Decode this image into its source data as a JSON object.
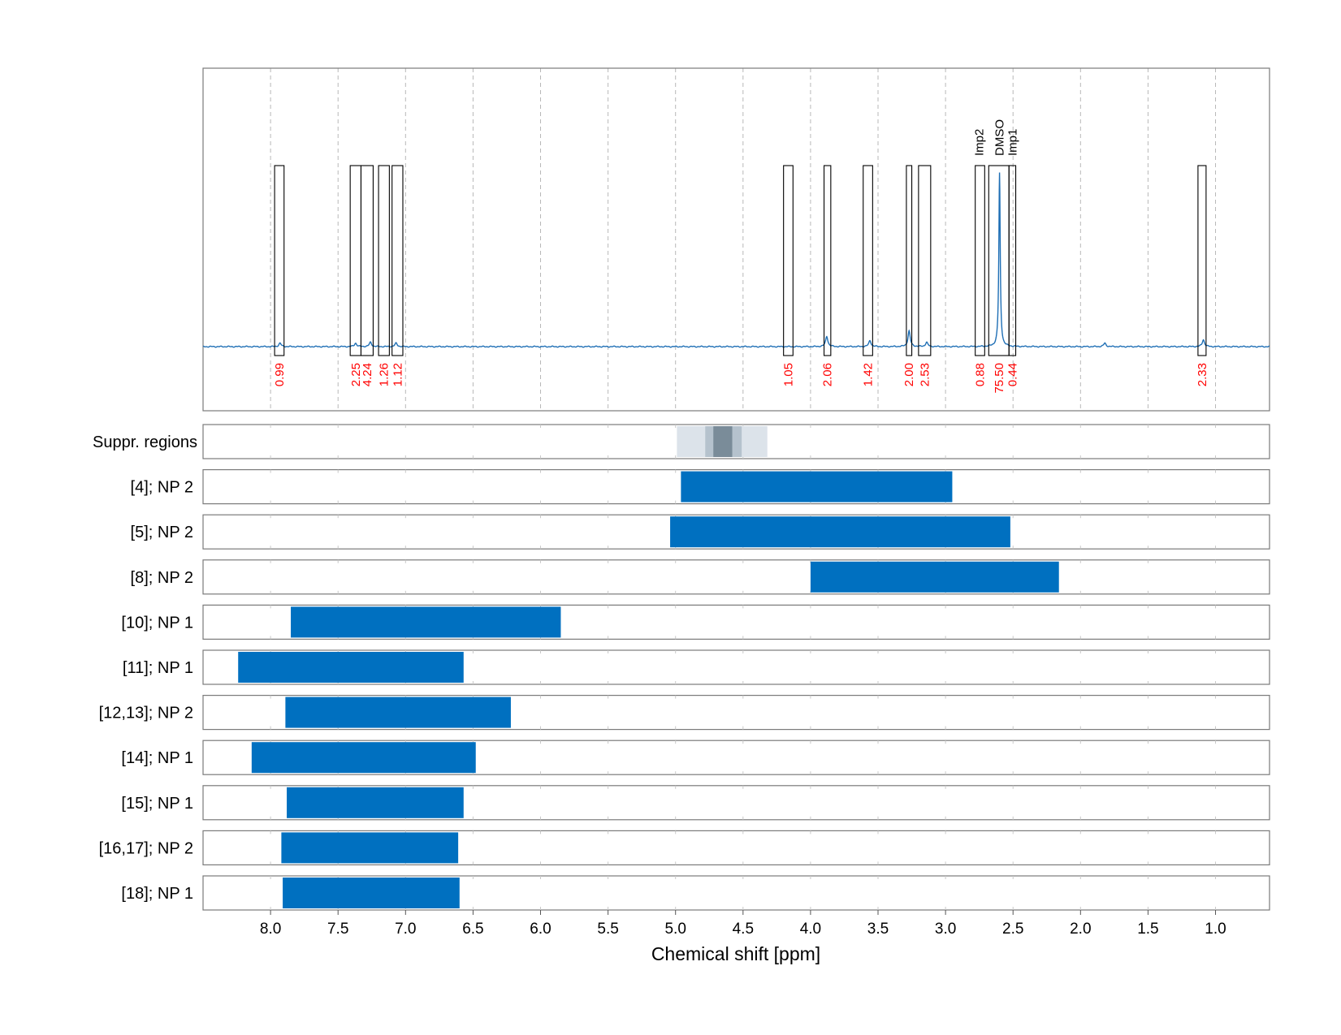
{
  "chart_data": {
    "type": "nmr-spectrum-with-range-bars",
    "x_axis": {
      "label": "Chemical shift [ppm]",
      "range": [
        8.5,
        0.6
      ],
      "ticks": [
        8.0,
        7.5,
        7.0,
        6.5,
        6.0,
        5.5,
        5.0,
        4.5,
        4.0,
        3.5,
        3.0,
        2.5,
        2.0,
        1.5,
        1.0
      ],
      "tick_labels": [
        "8.0",
        "7.5",
        "7.0",
        "6.5",
        "6.0",
        "5.5",
        "5.0",
        "4.5",
        "4.0",
        "3.5",
        "3.0",
        "2.5",
        "2.0",
        "1.5",
        "1.0"
      ],
      "grid": "dashed"
    },
    "spectrum": {
      "color": "#1f6fb5",
      "baseline": 0,
      "peaks": [
        {
          "ppm": 7.93,
          "height": 0.02
        },
        {
          "ppm": 7.37,
          "height": 0.02
        },
        {
          "ppm": 7.26,
          "height": 0.025
        },
        {
          "ppm": 7.07,
          "height": 0.02
        },
        {
          "ppm": 3.88,
          "height": 0.06
        },
        {
          "ppm": 3.56,
          "height": 0.035
        },
        {
          "ppm": 3.27,
          "height": 0.09
        },
        {
          "ppm": 3.14,
          "height": 0.025
        },
        {
          "ppm": 2.6,
          "height": 1.0
        },
        {
          "ppm": 1.82,
          "height": 0.02
        },
        {
          "ppm": 1.09,
          "height": 0.04
        }
      ]
    },
    "integration_regions": [
      {
        "start": 7.97,
        "end": 7.9,
        "value": "0.99"
      },
      {
        "start": 7.41,
        "end": 7.33,
        "value": "2.25"
      },
      {
        "start": 7.33,
        "end": 7.24,
        "value": "4.24"
      },
      {
        "start": 7.2,
        "end": 7.12,
        "value": "1.26"
      },
      {
        "start": 7.1,
        "end": 7.02,
        "value": "1.12"
      },
      {
        "start": 4.2,
        "end": 4.13,
        "value": "1.05"
      },
      {
        "start": 3.9,
        "end": 3.85,
        "value": "2.06"
      },
      {
        "start": 3.61,
        "end": 3.54,
        "value": "1.42"
      },
      {
        "start": 3.29,
        "end": 3.25,
        "value": "2.00"
      },
      {
        "start": 3.2,
        "end": 3.11,
        "value": "2.53"
      },
      {
        "start": 2.78,
        "end": 2.71,
        "value": "0.88"
      },
      {
        "start": 2.68,
        "end": 2.53,
        "value": "75.50",
        "name": "DMSO"
      },
      {
        "start": 2.53,
        "end": 2.48,
        "value": "0.44",
        "name": "Imp1"
      },
      {
        "start": 1.13,
        "end": 1.07,
        "value": "2.33"
      }
    ],
    "region_name_labels": [
      {
        "ppm": 2.75,
        "name": "Imp2"
      },
      {
        "ppm": 2.6,
        "name": "DMSO"
      },
      {
        "ppm": 2.505,
        "name": "Imp1"
      }
    ],
    "suppression": {
      "label": "Suppr. regions",
      "regions": [
        {
          "start": 4.99,
          "end": 4.32,
          "color": "#dce3ea"
        },
        {
          "start": 4.78,
          "end": 4.51,
          "color": "#b5c2cd"
        },
        {
          "start": 4.72,
          "end": 4.58,
          "color": "#7a8c99"
        }
      ]
    },
    "assignment_rows": [
      {
        "label": "[4]; NP 2",
        "start": 4.96,
        "end": 2.95
      },
      {
        "label": "[5]; NP 2",
        "start": 5.04,
        "end": 2.52
      },
      {
        "label": "[8]; NP 2",
        "start": 4.0,
        "end": 2.16
      },
      {
        "label": "[10]; NP 1",
        "start": 7.85,
        "end": 5.85
      },
      {
        "label": "[11]; NP 1",
        "start": 8.24,
        "end": 6.57
      },
      {
        "label": "[12,13]; NP 2",
        "start": 7.89,
        "end": 6.22
      },
      {
        "label": "[14]; NP 1",
        "start": 8.14,
        "end": 6.48
      },
      {
        "label": "[15]; NP 1",
        "start": 7.88,
        "end": 6.57
      },
      {
        "label": "[16,17]; NP 2",
        "start": 7.92,
        "end": 6.61
      },
      {
        "label": "[18]; NP 1",
        "start": 7.91,
        "end": 6.6
      }
    ],
    "bar_color": "#0070c0",
    "value_label_color": "#ff0000"
  }
}
